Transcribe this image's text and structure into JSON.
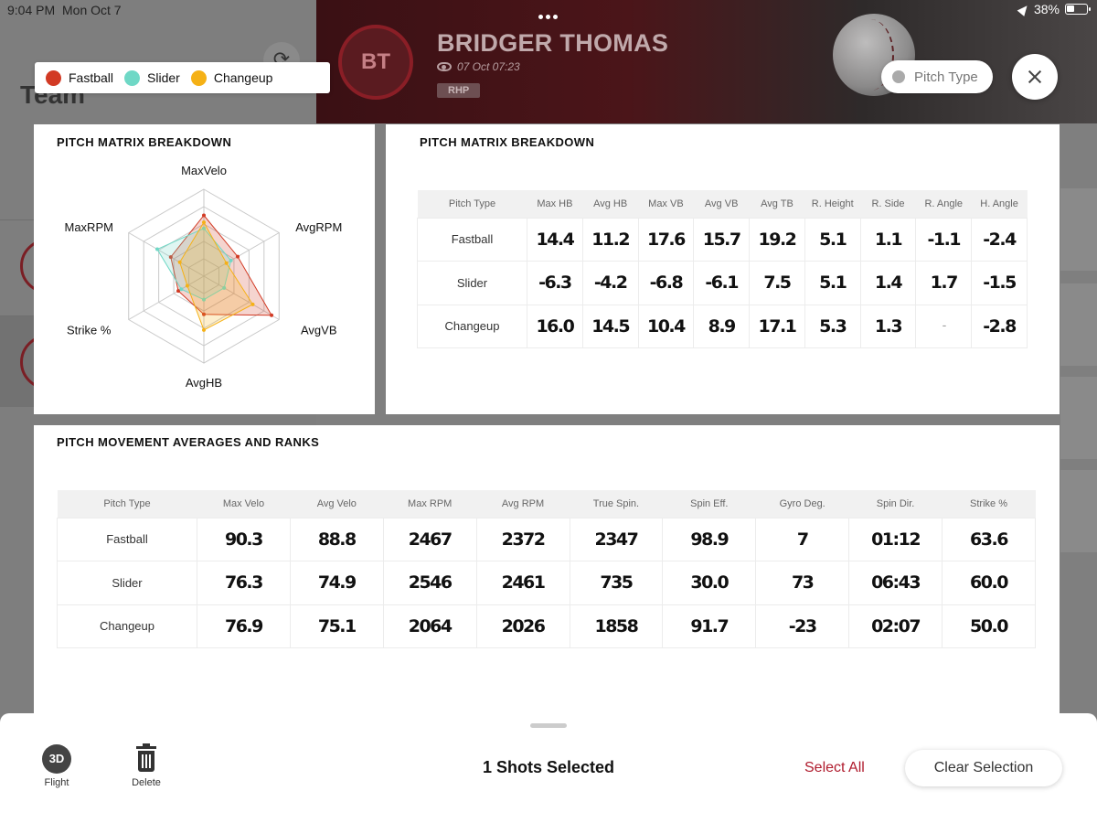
{
  "status_bar": {
    "time": "9:04 PM",
    "date": "Mon Oct 7",
    "battery": "38%"
  },
  "background": {
    "team_title": "Team"
  },
  "player": {
    "initials": "BT",
    "name": "BRIDGER THOMAS",
    "timestamp": "07 Oct 07:23",
    "position": "RHP"
  },
  "header": {
    "pitch_type_label": "Pitch Type"
  },
  "legend": [
    {
      "label": "Fastball",
      "color": "#d23a24"
    },
    {
      "label": "Slider",
      "color": "#6fd8c6"
    },
    {
      "label": "Changeup",
      "color": "#f5b116"
    }
  ],
  "radar": {
    "title": "PITCH MATRIX BREAKDOWN",
    "axes": [
      "MaxVelo",
      "AvgRPM",
      "AvgVB",
      "AvgHB",
      "Strike %",
      "MaxRPM"
    ]
  },
  "chart_data": {
    "type": "radar",
    "title": "PITCH MATRIX BREAKDOWN",
    "axes": [
      "MaxVelo",
      "AvgRPM",
      "AvgVB",
      "AvgHB",
      "Strike %",
      "MaxRPM"
    ],
    "rings": 5,
    "series": [
      {
        "name": "Fastball",
        "color": "#d23a24",
        "values": [
          0.7,
          0.45,
          0.9,
          0.44,
          0.34,
          0.44
        ]
      },
      {
        "name": "Slider",
        "color": "#6fd8c6",
        "values": [
          0.55,
          0.36,
          0.27,
          0.27,
          0.3,
          0.62
        ]
      },
      {
        "name": "Changeup",
        "color": "#f5b116",
        "values": [
          0.62,
          0.3,
          0.65,
          0.62,
          0.22,
          0.32
        ]
      }
    ]
  },
  "matrix": {
    "title": "PITCH MATRIX BREAKDOWN",
    "headers": [
      "Pitch Type",
      "Max HB",
      "Avg HB",
      "Max VB",
      "Avg VB",
      "Avg TB",
      "R. Height",
      "R. Side",
      "R. Angle",
      "H. Angle"
    ],
    "rows": [
      [
        "Fastball",
        "14.4",
        "11.2",
        "17.6",
        "15.7",
        "19.2",
        "5.1",
        "1.1",
        "-1.1",
        "-2.4"
      ],
      [
        "Slider",
        "-6.3",
        "-4.2",
        "-6.8",
        "-6.1",
        "7.5",
        "5.1",
        "1.4",
        "1.7",
        "-1.5"
      ],
      [
        "Changeup",
        "16.0",
        "14.5",
        "10.4",
        "8.9",
        "17.1",
        "5.3",
        "1.3",
        "-",
        "-2.8"
      ]
    ]
  },
  "movement": {
    "title": "PITCH MOVEMENT AVERAGES AND RANKS",
    "headers": [
      "Pitch Type",
      "Max Velo",
      "Avg Velo",
      "Max RPM",
      "Avg RPM",
      "True Spin.",
      "Spin Eff.",
      "Gyro Deg.",
      "Spin Dir.",
      "Strike %"
    ],
    "rows": [
      [
        "Fastball",
        "90.3",
        "88.8",
        "2467",
        "2372",
        "2347",
        "98.9",
        "7",
        "01:12",
        "63.6"
      ],
      [
        "Slider",
        "76.3",
        "74.9",
        "2546",
        "2461",
        "735",
        "30.0",
        "73",
        "06:43",
        "60.0"
      ],
      [
        "Changeup",
        "76.9",
        "75.1",
        "2064",
        "2026",
        "1858",
        "91.7",
        "-23",
        "02:07",
        "50.0"
      ]
    ]
  },
  "bottom_sheet": {
    "flight_icon": "3D",
    "flight_label": "Flight",
    "delete_label": "Delete",
    "shots_selected": "1 Shots Selected",
    "select_all": "Select All",
    "clear_selection": "Clear Selection"
  }
}
